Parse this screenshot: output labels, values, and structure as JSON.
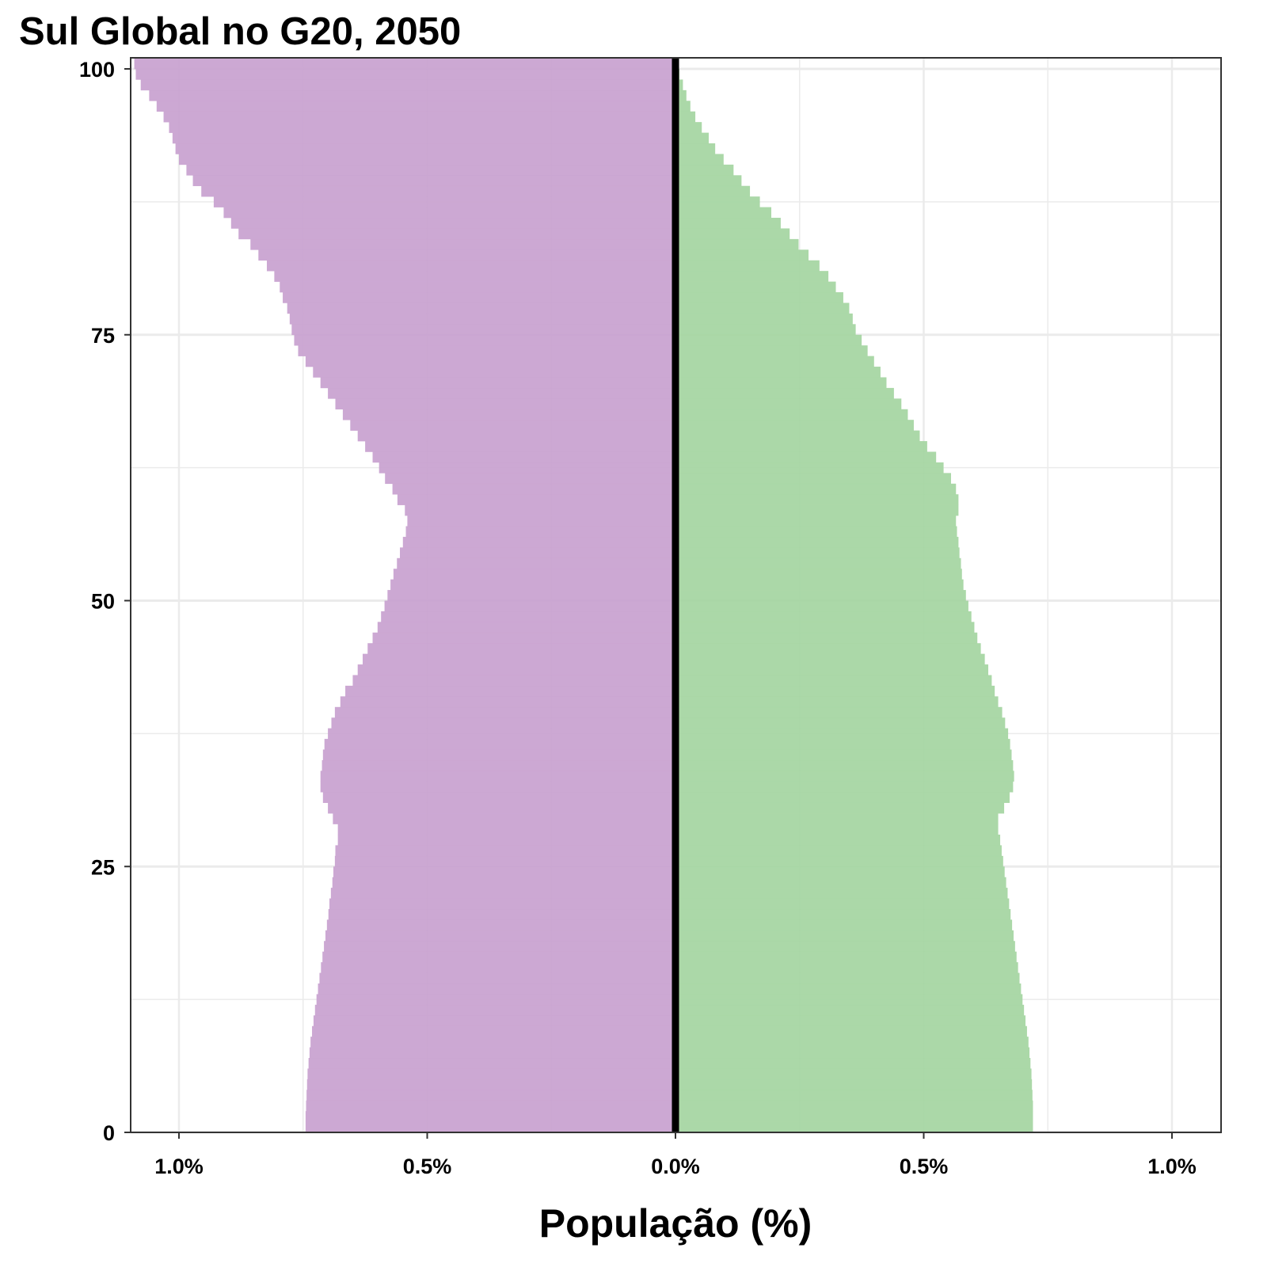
{
  "chart_data": {
    "type": "bar",
    "orientation": "horizontal",
    "title": "Sul Global no G20, 2050",
    "xlabel": "População (%)",
    "ylabel": "",
    "xlim": [
      -1.1,
      1.1
    ],
    "ylim": [
      0,
      100
    ],
    "x_ticks": [
      -1.0,
      -0.5,
      0.0,
      0.5,
      1.0
    ],
    "x_tick_labels": [
      "1.0%",
      "0.5%",
      "0.0%",
      "0.5%",
      "1.0%"
    ],
    "y_ticks": [
      0,
      25,
      50,
      75,
      100
    ],
    "y_tick_labels": [
      "0",
      "25",
      "50",
      "75",
      "100"
    ],
    "grid": true,
    "zero_line": true,
    "colors": {
      "left": "#c9a3d1",
      "right": "#a6d6a3",
      "zero_line": "#000000",
      "grid": "#ebebeb",
      "panel_border": "#333333"
    },
    "series": [
      {
        "side": "left",
        "color": "#c9a3d1",
        "note": "values in % of population, plotted to the left of 0",
        "ages": [
          0,
          1,
          2,
          3,
          4,
          5,
          6,
          7,
          8,
          9,
          10,
          11,
          12,
          13,
          14,
          15,
          16,
          17,
          18,
          19,
          20,
          21,
          22,
          23,
          24,
          25,
          26,
          27,
          28,
          29,
          30,
          31,
          32,
          33,
          34,
          35,
          36,
          37,
          38,
          39,
          40,
          41,
          42,
          43,
          44,
          45,
          46,
          47,
          48,
          49,
          50,
          51,
          52,
          53,
          54,
          55,
          56,
          57,
          58,
          59,
          60,
          61,
          62,
          63,
          64,
          65,
          66,
          67,
          68,
          69,
          70,
          71,
          72,
          73,
          74,
          75,
          76,
          77,
          78,
          79,
          80,
          81,
          82,
          83,
          84,
          85,
          86,
          87,
          88,
          89,
          90,
          91,
          92,
          93,
          94,
          95,
          96,
          97,
          98,
          99,
          100
        ],
        "values": [
          0.745,
          0.745,
          0.744,
          0.743,
          0.742,
          0.741,
          0.739,
          0.737,
          0.735,
          0.732,
          0.729,
          0.726,
          0.723,
          0.72,
          0.717,
          0.714,
          0.711,
          0.708,
          0.705,
          0.702,
          0.699,
          0.697,
          0.694,
          0.691,
          0.689,
          0.686,
          0.685,
          0.68,
          0.68,
          0.69,
          0.7,
          0.71,
          0.715,
          0.715,
          0.712,
          0.71,
          0.707,
          0.7,
          0.693,
          0.686,
          0.675,
          0.665,
          0.65,
          0.64,
          0.63,
          0.62,
          0.61,
          0.6,
          0.593,
          0.586,
          0.58,
          0.574,
          0.568,
          0.561,
          0.555,
          0.549,
          0.543,
          0.54,
          0.545,
          0.56,
          0.57,
          0.585,
          0.597,
          0.61,
          0.625,
          0.64,
          0.655,
          0.67,
          0.685,
          0.7,
          0.715,
          0.73,
          0.745,
          0.76,
          0.768,
          0.773,
          0.777,
          0.782,
          0.791,
          0.797,
          0.808,
          0.823,
          0.84,
          0.856,
          0.88,
          0.895,
          0.91,
          0.93,
          0.955,
          0.972,
          0.985,
          1.0,
          1.007,
          1.013,
          1.02,
          1.031,
          1.045,
          1.06,
          1.077,
          1.087,
          1.09
        ],
        "values_pct": "see values (encoded as % of population)"
      },
      {
        "side": "right",
        "color": "#a6d6a3",
        "note": "values in % of population, plotted to the right of 0",
        "ages": [
          0,
          1,
          2,
          3,
          4,
          5,
          6,
          7,
          8,
          9,
          10,
          11,
          12,
          13,
          14,
          15,
          16,
          17,
          18,
          19,
          20,
          21,
          22,
          23,
          24,
          25,
          26,
          27,
          28,
          29,
          30,
          31,
          32,
          33,
          34,
          35,
          36,
          37,
          38,
          39,
          40,
          41,
          42,
          43,
          44,
          45,
          46,
          47,
          48,
          49,
          50,
          51,
          52,
          53,
          54,
          55,
          56,
          57,
          58,
          59,
          60,
          61,
          62,
          63,
          64,
          65,
          66,
          67,
          68,
          69,
          70,
          71,
          72,
          73,
          74,
          75,
          76,
          77,
          78,
          79,
          80,
          81,
          82,
          83,
          84,
          85,
          86,
          87,
          88,
          89,
          90,
          91,
          92,
          93,
          94,
          95,
          96,
          97,
          98,
          99,
          100
        ],
        "values": [
          0.72,
          0.72,
          0.72,
          0.719,
          0.718,
          0.717,
          0.715,
          0.713,
          0.711,
          0.708,
          0.705,
          0.702,
          0.699,
          0.696,
          0.693,
          0.69,
          0.687,
          0.684,
          0.681,
          0.678,
          0.675,
          0.672,
          0.669,
          0.666,
          0.663,
          0.66,
          0.657,
          0.654,
          0.65,
          0.65,
          0.662,
          0.673,
          0.68,
          0.682,
          0.68,
          0.677,
          0.674,
          0.67,
          0.664,
          0.658,
          0.65,
          0.643,
          0.637,
          0.63,
          0.623,
          0.615,
          0.608,
          0.602,
          0.596,
          0.59,
          0.585,
          0.58,
          0.577,
          0.575,
          0.572,
          0.57,
          0.567,
          0.565,
          0.57,
          0.57,
          0.565,
          0.555,
          0.54,
          0.525,
          0.507,
          0.492,
          0.48,
          0.468,
          0.455,
          0.44,
          0.425,
          0.413,
          0.4,
          0.387,
          0.375,
          0.363,
          0.357,
          0.35,
          0.338,
          0.323,
          0.308,
          0.29,
          0.268,
          0.248,
          0.23,
          0.212,
          0.193,
          0.17,
          0.15,
          0.133,
          0.117,
          0.097,
          0.08,
          0.067,
          0.053,
          0.04,
          0.03,
          0.022,
          0.015,
          0.008,
          0.005
        ]
      }
    ]
  }
}
